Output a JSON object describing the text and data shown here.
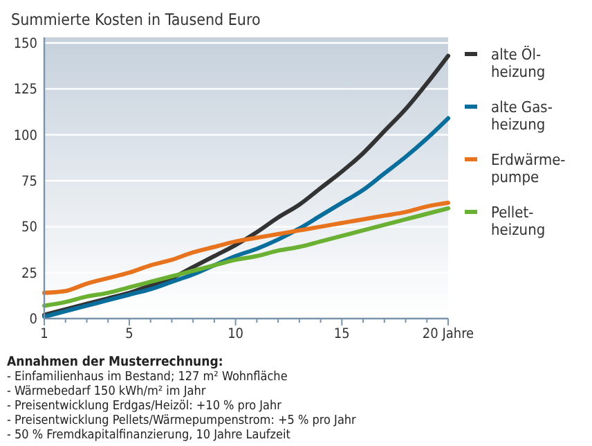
{
  "chart_data": {
    "type": "line",
    "title": "Summierte Kosten in Tausend Euro",
    "x": [
      1,
      2,
      3,
      4,
      5,
      6,
      7,
      8,
      9,
      10,
      11,
      12,
      13,
      14,
      15,
      16,
      17,
      18,
      19,
      20
    ],
    "series": [
      {
        "name": "alte Öl-\nheizung",
        "color": "#333333",
        "values": [
          2,
          5,
          8,
          11,
          14,
          18,
          22,
          28,
          34,
          40,
          47,
          55,
          62,
          71,
          80,
          90,
          102,
          114,
          128,
          143
        ]
      },
      {
        "name": "alte Gas-\nheizung",
        "color": "#0a6e9c",
        "values": [
          1,
          4,
          7,
          10,
          13,
          16,
          20,
          24,
          29,
          34,
          38,
          43,
          49,
          56,
          63,
          70,
          79,
          88,
          98,
          109
        ]
      },
      {
        "name": "Erdwärme-\npumpe",
        "color": "#e8731e",
        "values": [
          14,
          15,
          19,
          22,
          25,
          29,
          32,
          36,
          39,
          42,
          44,
          46,
          48,
          50,
          52,
          54,
          56,
          58,
          61,
          63
        ]
      },
      {
        "name": "Pellet-\nheizung",
        "color": "#6ab033",
        "values": [
          7,
          9,
          12,
          14,
          17,
          20,
          23,
          26,
          29,
          32,
          34,
          37,
          39,
          42,
          45,
          48,
          51,
          54,
          57,
          60
        ]
      }
    ],
    "xlim": [
      1,
      20
    ],
    "xticks": [
      1,
      {
        "value": 2,
        "label": null
      },
      {
        "value": 3,
        "label": null
      },
      {
        "value": 4,
        "label": null
      },
      5,
      {
        "value": 6,
        "label": null
      },
      {
        "value": 7,
        "label": null
      },
      {
        "value": 8,
        "label": null
      },
      {
        "value": 9,
        "label": null
      },
      10,
      {
        "value": 11,
        "label": null
      },
      {
        "value": 12,
        "label": null
      },
      {
        "value": 13,
        "label": null
      },
      {
        "value": 14,
        "label": null
      },
      15,
      {
        "value": 16,
        "label": null
      },
      {
        "value": 17,
        "label": null
      },
      {
        "value": 18,
        "label": null
      },
      {
        "value": 19,
        "label": null
      },
      {
        "value": 20,
        "label": "20 Jahre"
      }
    ],
    "ylim": [
      0,
      150
    ],
    "yticks": [
      0,
      25,
      50,
      75,
      100,
      125,
      150
    ],
    "grid": "y",
    "legend": "right",
    "marker": "none",
    "line_style": "solid",
    "annotations": [
      "Annahmen der Musterrechnung:",
      "- Einfamilienhaus im Bestand; 127 m² Wohnfläche",
      "- Wärmebedarf 150 kWh/m² im Jahr",
      "- Preisentwicklung Erdgas/Heizöl: +10 % pro Jahr",
      "- Preisentwicklung Pellets/Wärmepumpenstrom: +5 % pro Jahr",
      "- 50 % Fremdkapitalfinanzierung, 10 Jahre Laufzeit"
    ]
  }
}
